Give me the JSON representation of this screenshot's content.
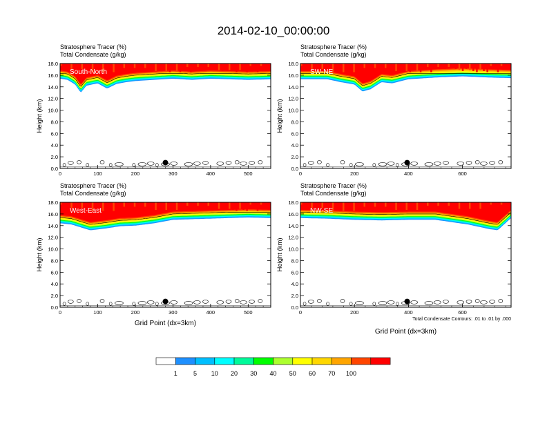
{
  "figure": {
    "title": "2014-02-10_00:00:00"
  },
  "chart_data": [
    {
      "type": "heatmap",
      "panel_label": "South-North",
      "subtitle_1": "Stratosphere Tracer   (%)",
      "subtitle_2": "Total Condensate   (g/kg)",
      "ylabel": "Height (km)",
      "xlabel": "",
      "xlim": [
        0,
        560
      ],
      "ylim": [
        0,
        18
      ],
      "xticks": [
        0,
        100,
        200,
        300,
        400,
        500
      ],
      "yticks": [
        "0.0",
        "2.0",
        "4.0",
        "6.0",
        "8.0",
        "10.0",
        "12.0",
        "14.0",
        "16.0",
        "18.0"
      ],
      "marker_x": 280,
      "marker_y": 1.0,
      "tracer_base_km": [
        [
          0,
          15.4
        ],
        [
          20,
          15.2
        ],
        [
          40,
          14.4
        ],
        [
          55,
          13.0
        ],
        [
          70,
          14.2
        ],
        [
          100,
          14.6
        ],
        [
          125,
          13.7
        ],
        [
          150,
          14.5
        ],
        [
          175,
          14.8
        ],
        [
          200,
          15.0
        ],
        [
          250,
          15.2
        ],
        [
          300,
          15.4
        ],
        [
          350,
          15.2
        ],
        [
          400,
          15.4
        ],
        [
          450,
          15.3
        ],
        [
          500,
          15.2
        ],
        [
          560,
          15.3
        ]
      ]
    },
    {
      "type": "heatmap",
      "panel_label": "SW-NE",
      "subtitle_1": "Stratosphere Tracer   (%)",
      "subtitle_2": "Total Condensate   (g/kg)",
      "ylabel": "Height (km)",
      "xlabel": "",
      "xlim": [
        0,
        780
      ],
      "ylim": [
        0,
        18
      ],
      "xticks": [
        0,
        200,
        400,
        600
      ],
      "yticks": [
        "0.0",
        "2.0",
        "4.0",
        "6.0",
        "8.0",
        "10.0",
        "12.0",
        "14.0",
        "16.0",
        "18.0"
      ],
      "marker_x": 395,
      "marker_y": 1.0,
      "tracer_base_km": [
        [
          0,
          15.3
        ],
        [
          100,
          15.3
        ],
        [
          150,
          14.8
        ],
        [
          200,
          14.4
        ],
        [
          230,
          13.2
        ],
        [
          260,
          13.6
        ],
        [
          300,
          14.8
        ],
        [
          340,
          14.6
        ],
        [
          400,
          15.3
        ],
        [
          500,
          15.6
        ],
        [
          600,
          15.8
        ],
        [
          700,
          15.6
        ],
        [
          780,
          15.5
        ]
      ]
    },
    {
      "type": "heatmap",
      "panel_label": "West-East",
      "subtitle_1": "Stratosphere Tracer   (%)",
      "subtitle_2": "Total Condensate   (g/kg)",
      "ylabel": "Height (km)",
      "xlabel": "Grid Point (dx=3km)",
      "xlim": [
        0,
        560
      ],
      "ylim": [
        0,
        18
      ],
      "xticks": [
        0,
        100,
        200,
        300,
        400,
        500
      ],
      "yticks": [
        "0.0",
        "2.0",
        "4.0",
        "6.0",
        "8.0",
        "10.0",
        "12.0",
        "14.0",
        "16.0",
        "18.0"
      ],
      "marker_x": 280,
      "marker_y": 1.0,
      "tracer_base_km": [
        [
          0,
          14.4
        ],
        [
          30,
          14.2
        ],
        [
          60,
          13.6
        ],
        [
          80,
          13.2
        ],
        [
          120,
          13.5
        ],
        [
          160,
          13.9
        ],
        [
          200,
          14.0
        ],
        [
          250,
          14.4
        ],
        [
          300,
          15.0
        ],
        [
          400,
          15.2
        ],
        [
          500,
          15.4
        ],
        [
          560,
          15.3
        ]
      ]
    },
    {
      "type": "heatmap",
      "panel_label": "NW-SE",
      "subtitle_1": "Stratosphere Tracer   (%)",
      "subtitle_2": "Total Condensate   (g/kg)",
      "ylabel": "Height (km)",
      "xlabel": "Grid Point (dx=3km)",
      "xlim": [
        0,
        780
      ],
      "ylim": [
        0,
        18
      ],
      "xticks": [
        0,
        200,
        400,
        600
      ],
      "yticks": [
        "0.0",
        "2.0",
        "4.0",
        "6.0",
        "8.0",
        "10.0",
        "12.0",
        "14.0",
        "16.0",
        "18.0"
      ],
      "marker_x": 395,
      "marker_y": 1.0,
      "contour_note": "Total Condensate Contours: .01 to .01 by .000",
      "tracer_base_km": [
        [
          0,
          15.3
        ],
        [
          100,
          15.2
        ],
        [
          200,
          15.0
        ],
        [
          300,
          14.9
        ],
        [
          400,
          15.0
        ],
        [
          500,
          15.0
        ],
        [
          560,
          14.6
        ],
        [
          620,
          14.2
        ],
        [
          660,
          13.8
        ],
        [
          700,
          13.4
        ],
        [
          730,
          13.2
        ],
        [
          780,
          15.3
        ]
      ]
    }
  ],
  "colorbar": {
    "labels": [
      "1",
      "5",
      "10",
      "20",
      "30",
      "40",
      "50",
      "60",
      "70",
      "100"
    ],
    "colors": [
      "#ffffff",
      "#1e90ff",
      "#00bfff",
      "#00ffff",
      "#00fa9a",
      "#00ff00",
      "#adff2f",
      "#ffff00",
      "#ffd700",
      "#ffa500",
      "#ff4500",
      "#ff0000"
    ]
  }
}
